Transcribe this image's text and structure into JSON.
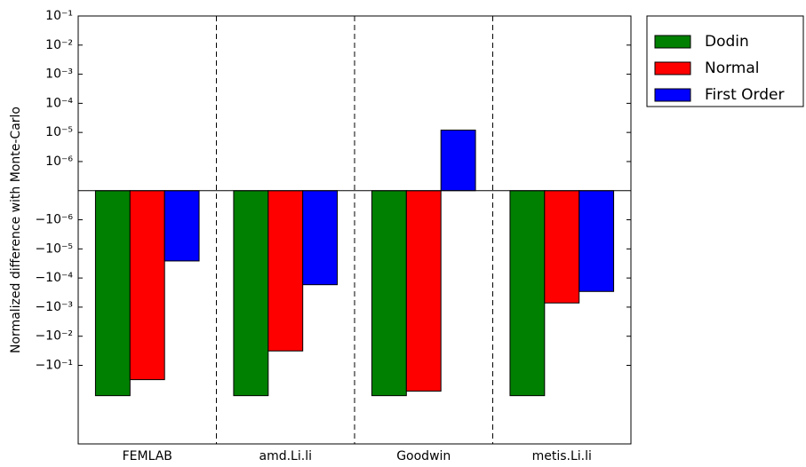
{
  "chart_data": {
    "type": "bar",
    "y_label": "Normalized difference with Monte-Carlo",
    "y_scale": "symlog",
    "linthresh": 1e-06,
    "categories": [
      "FEMLAB",
      "amd.Li.li",
      "Goodwin",
      "metis.Li.li"
    ],
    "series": [
      {
        "name": "Dodin",
        "color": "#008000",
        "values": [
          -1.1,
          -1.1,
          -1.1,
          -1.1
        ]
      },
      {
        "name": "Normal",
        "color": "#ff0000",
        "values": [
          -0.31,
          -0.032,
          -0.77,
          -0.00072
        ]
      },
      {
        "name": "First Order",
        "color": "#0000ff",
        "values": [
          -2.6e-05,
          -0.00017,
          1.2e-05,
          -0.00029
        ]
      }
    ],
    "ylim": [
      -50,
      0.1
    ],
    "yticks": [
      {
        "value": 0.1,
        "label": "10⁻¹"
      },
      {
        "value": 0.01,
        "label": "10⁻²"
      },
      {
        "value": 0.001,
        "label": "10⁻³"
      },
      {
        "value": 0.0001,
        "label": "10⁻⁴"
      },
      {
        "value": 1e-05,
        "label": "10⁻⁵"
      },
      {
        "value": 1e-06,
        "label": "10⁻⁶"
      },
      {
        "value": -1e-06,
        "label": "−10⁻⁶"
      },
      {
        "value": -1e-05,
        "label": "−10⁻⁵"
      },
      {
        "value": -0.0001,
        "label": "−10⁻⁴"
      },
      {
        "value": -0.001,
        "label": "−10⁻³"
      },
      {
        "value": -0.01,
        "label": "−10⁻²"
      },
      {
        "value": -0.1,
        "label": "−10⁻¹"
      }
    ],
    "legend": "upper-right-outside"
  }
}
